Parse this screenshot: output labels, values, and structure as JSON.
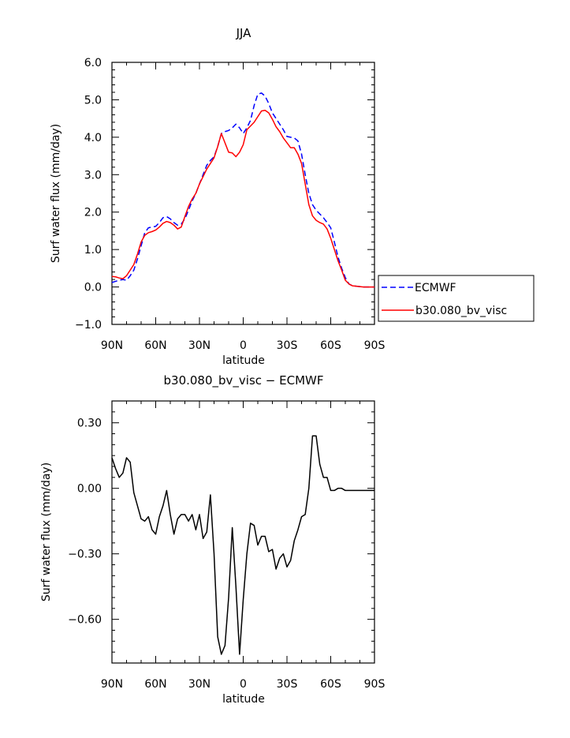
{
  "chart_data": [
    {
      "type": "line",
      "title": "JJA",
      "xlabel": "latitude",
      "ylabel": "Surf water flux (mm/day)",
      "xlim": [
        90,
        -90
      ],
      "ylim": [
        -1.0,
        6.0
      ],
      "yticks": [
        -1.0,
        0.0,
        1.0,
        2.0,
        3.0,
        4.0,
        5.0,
        6.0
      ],
      "ytick_labels": [
        "−1.0",
        "0.0",
        "1.0",
        "2.0",
        "3.0",
        "4.0",
        "5.0",
        "6.0"
      ],
      "xticks": [
        90,
        60,
        30,
        0,
        -30,
        -60,
        -90
      ],
      "xtick_labels": [
        "90N",
        "60N",
        "30N",
        "0",
        "30S",
        "60S",
        "90S"
      ],
      "legend": {
        "position": "right",
        "entries": [
          "ECMWF",
          "b30.080_bv_visc"
        ]
      },
      "series": [
        {
          "name": "ECMWF",
          "color": "#0000ff",
          "dash": "dashed",
          "x": [
            90,
            87.5,
            85,
            82.5,
            80,
            77.5,
            75,
            72.5,
            70,
            67.5,
            65,
            62.5,
            60,
            57.5,
            55,
            52.5,
            50,
            47.5,
            45,
            42.5,
            40,
            37.5,
            35,
            32.5,
            30,
            27.5,
            25,
            22.5,
            20,
            17.5,
            15,
            12.5,
            10,
            7.5,
            5,
            2.5,
            0,
            -2.5,
            -5,
            -7.5,
            -10,
            -12.5,
            -15,
            -17.5,
            -20,
            -22.5,
            -25,
            -27.5,
            -30,
            -32.5,
            -35,
            -37.5,
            -40,
            -42.5,
            -45,
            -47.5,
            -50,
            -52.5,
            -55,
            -57.5,
            -60,
            -62.5,
            -65,
            -67.5,
            -70,
            -72.5,
            -75,
            -77.5,
            -80,
            -82.5,
            -85,
            -87.5,
            -90
          ],
          "values": [
            0.12,
            0.15,
            0.18,
            0.2,
            0.18,
            0.3,
            0.45,
            0.75,
            1.1,
            1.45,
            1.58,
            1.6,
            1.62,
            1.72,
            1.85,
            1.88,
            1.82,
            1.72,
            1.65,
            1.68,
            1.82,
            2.05,
            2.3,
            2.5,
            2.75,
            3.0,
            3.25,
            3.38,
            3.48,
            3.75,
            4.1,
            4.15,
            4.18,
            4.25,
            4.35,
            4.25,
            4.1,
            4.25,
            4.45,
            4.85,
            5.15,
            5.18,
            5.1,
            4.9,
            4.65,
            4.5,
            4.35,
            4.2,
            4.02,
            4.0,
            3.98,
            3.9,
            3.55,
            3.0,
            2.5,
            2.2,
            2.05,
            1.95,
            1.85,
            1.72,
            1.58,
            1.2,
            0.8,
            0.5,
            0.25,
            0.08,
            0.03,
            0.02,
            0.01,
            0.0,
            0.0,
            0.0,
            0.0
          ]
        },
        {
          "name": "b30.080_bv_visc",
          "color": "#ff0000",
          "dash": "solid",
          "x": [
            90,
            87.5,
            85,
            82.5,
            80,
            77.5,
            75,
            72.5,
            70,
            67.5,
            65,
            62.5,
            60,
            57.5,
            55,
            52.5,
            50,
            47.5,
            45,
            42.5,
            40,
            37.5,
            35,
            32.5,
            30,
            27.5,
            25,
            22.5,
            20,
            17.5,
            15,
            12.5,
            10,
            7.5,
            5,
            2.5,
            0,
            -2.5,
            -5,
            -7.5,
            -10,
            -12.5,
            -15,
            -17.5,
            -20,
            -22.5,
            -25,
            -27.5,
            -30,
            -32.5,
            -35,
            -37.5,
            -40,
            -42.5,
            -45,
            -47.5,
            -50,
            -52.5,
            -55,
            -57.5,
            -60,
            -62.5,
            -65,
            -67.5,
            -70,
            -72.5,
            -75,
            -77.5,
            -80,
            -82.5,
            -85,
            -87.5,
            -90
          ],
          "values": [
            0.28,
            0.27,
            0.24,
            0.22,
            0.3,
            0.45,
            0.6,
            0.88,
            1.2,
            1.38,
            1.45,
            1.48,
            1.52,
            1.6,
            1.7,
            1.75,
            1.72,
            1.65,
            1.55,
            1.6,
            1.88,
            2.15,
            2.35,
            2.5,
            2.75,
            2.95,
            3.15,
            3.3,
            3.45,
            3.75,
            4.1,
            3.85,
            3.6,
            3.58,
            3.48,
            3.6,
            3.8,
            4.2,
            4.3,
            4.4,
            4.55,
            4.7,
            4.72,
            4.65,
            4.48,
            4.28,
            4.15,
            3.98,
            3.85,
            3.72,
            3.72,
            3.55,
            3.3,
            2.75,
            2.2,
            1.9,
            1.78,
            1.72,
            1.68,
            1.55,
            1.3,
            1.0,
            0.7,
            0.45,
            0.18,
            0.08,
            0.03,
            0.02,
            0.01,
            0.0,
            0.0,
            0.0,
            0.0
          ]
        }
      ]
    },
    {
      "type": "line",
      "title": "b30.080_bv_visc − ECMWF",
      "xlabel": "latitude",
      "ylabel": "Surf water flux (mm/day)",
      "xlim": [
        90,
        -90
      ],
      "ylim": [
        -0.8,
        0.4
      ],
      "yticks": [
        0.3,
        0.0,
        -0.3,
        -0.6
      ],
      "ytick_labels": [
        "0.30",
        "0.00",
        "−0.30",
        "−0.60"
      ],
      "xticks": [
        90,
        60,
        30,
        0,
        -30,
        -60,
        -90
      ],
      "xtick_labels": [
        "90N",
        "60N",
        "30N",
        "0",
        "30S",
        "60S",
        "90S"
      ],
      "series": [
        {
          "name": "b30.080_bv_visc − ECMWF",
          "color": "#000000",
          "dash": "solid",
          "x": [
            90,
            87.5,
            85,
            82.5,
            80,
            77.5,
            75,
            72.5,
            70,
            67.5,
            65,
            62.5,
            60,
            57.5,
            55,
            52.5,
            50,
            47.5,
            45,
            42.5,
            40,
            37.5,
            35,
            32.5,
            30,
            27.5,
            25,
            22.5,
            20,
            17.5,
            15,
            12.5,
            10,
            7.5,
            5,
            2.5,
            0,
            -2.5,
            -5,
            -7.5,
            -10,
            -12.5,
            -15,
            -17.5,
            -20,
            -22.5,
            -25,
            -27.5,
            -30,
            -32.5,
            -35,
            -37.5,
            -40,
            -42.5,
            -45,
            -47.5,
            -50,
            -52.5,
            -55,
            -57.5,
            -60,
            -62.5,
            -65,
            -67.5,
            -70,
            -72.5,
            -75,
            -77.5,
            -80,
            -82.5,
            -85,
            -87.5,
            -90
          ],
          "values": [
            0.14,
            0.09,
            0.05,
            0.07,
            0.14,
            0.12,
            -0.02,
            -0.08,
            -0.14,
            -0.15,
            -0.13,
            -0.19,
            -0.21,
            -0.13,
            -0.08,
            -0.01,
            -0.12,
            -0.21,
            -0.14,
            -0.12,
            -0.12,
            -0.15,
            -0.12,
            -0.19,
            -0.12,
            -0.23,
            -0.2,
            -0.03,
            -0.3,
            -0.68,
            -0.76,
            -0.72,
            -0.5,
            -0.18,
            -0.45,
            -0.76,
            -0.51,
            -0.3,
            -0.16,
            -0.17,
            -0.26,
            -0.22,
            -0.22,
            -0.29,
            -0.28,
            -0.37,
            -0.32,
            -0.3,
            -0.36,
            -0.33,
            -0.24,
            -0.19,
            -0.13,
            -0.12,
            0.0,
            0.24,
            0.24,
            0.11,
            0.05,
            0.05,
            -0.01,
            -0.01,
            0.0,
            0.0,
            -0.01,
            -0.01,
            -0.01,
            -0.01,
            -0.01,
            -0.01,
            -0.01,
            -0.01,
            -0.01
          ]
        }
      ]
    }
  ]
}
